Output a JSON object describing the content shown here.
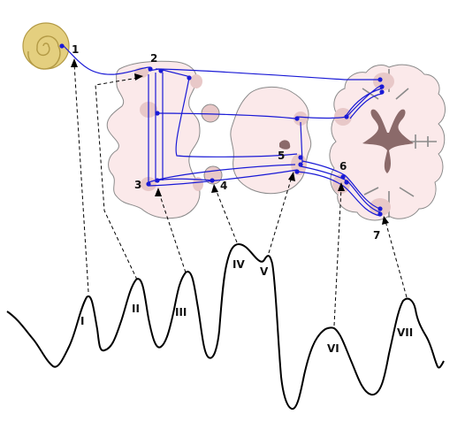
{
  "structure_labels": {
    "l1": "1",
    "l2": "2",
    "l3": "3",
    "l4": "4",
    "l5": "5",
    "l6": "6",
    "l7": "7"
  },
  "wave_labels": {
    "w1": "I",
    "w2": "II",
    "w3": "III",
    "w4": "IV",
    "w5": "V",
    "w6": "VI",
    "w7": "VII"
  },
  "colors": {
    "pathway": "#1a1ad6",
    "tissue_fill": "#fbe9ea",
    "tissue_stroke": "#8a8a8a",
    "nucleus_fill": "#e8c8c8",
    "cochlea_fill": "#e4cf7f",
    "cochlea_stroke": "#b39a45",
    "ventricle_fill": "#8b6a6a",
    "trace": "#000000"
  }
}
